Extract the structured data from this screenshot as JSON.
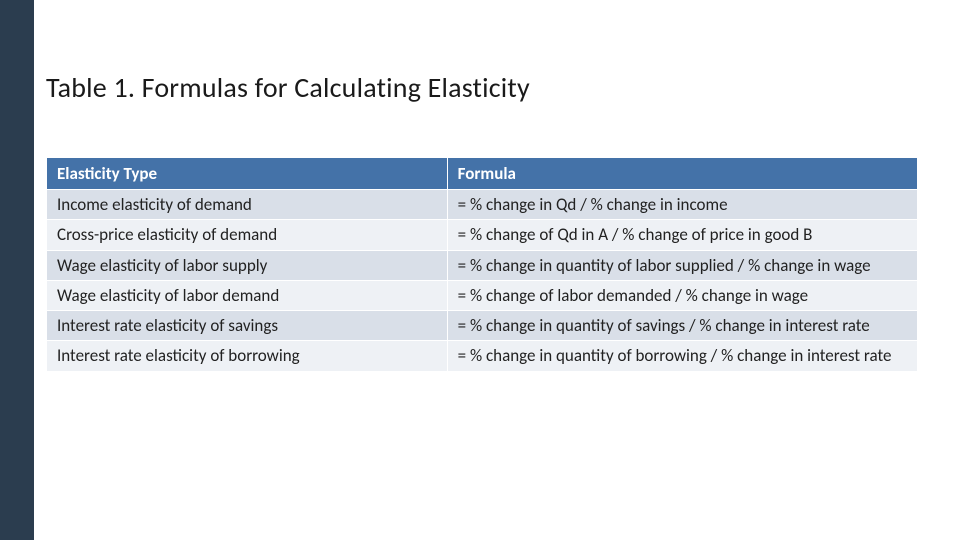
{
  "layout": {
    "left_rail_color": "#2b3d4f",
    "background_color": "#ffffff"
  },
  "title": {
    "text": "Table 1. Formulas for Calculating Elasticity",
    "fontsize": 28,
    "color": "#1a1a1a"
  },
  "table": {
    "type": "table",
    "header_bg": "#4472a8",
    "header_fg": "#ffffff",
    "row_odd_bg": "#d9dfe8",
    "row_even_bg": "#eef1f5",
    "cell_fontsize": 17,
    "columns": [
      {
        "label": "Elasticity Type",
        "width_pct": 46
      },
      {
        "label": "Formula",
        "width_pct": 54
      }
    ],
    "rows": [
      {
        "type": "Income elasticity of demand",
        "formula": "= % change in Qd / % change in income"
      },
      {
        "type": "Cross-price elasticity of demand",
        "formula": "= % change of Qd in A / % change of price in good B"
      },
      {
        "type": "Wage elasticity of labor supply",
        "formula": "= % change in quantity of labor supplied / % change in wage"
      },
      {
        "type": "Wage elasticity of labor demand",
        "formula": "= % change of labor demanded / % change in wage"
      },
      {
        "type": "Interest rate elasticity of savings",
        "formula": "= % change in quantity of savings / % change in interest rate"
      },
      {
        "type": "Interest rate elasticity of borrowing",
        "formula": "= % change in quantity of borrowing / % change in interest rate"
      }
    ]
  }
}
